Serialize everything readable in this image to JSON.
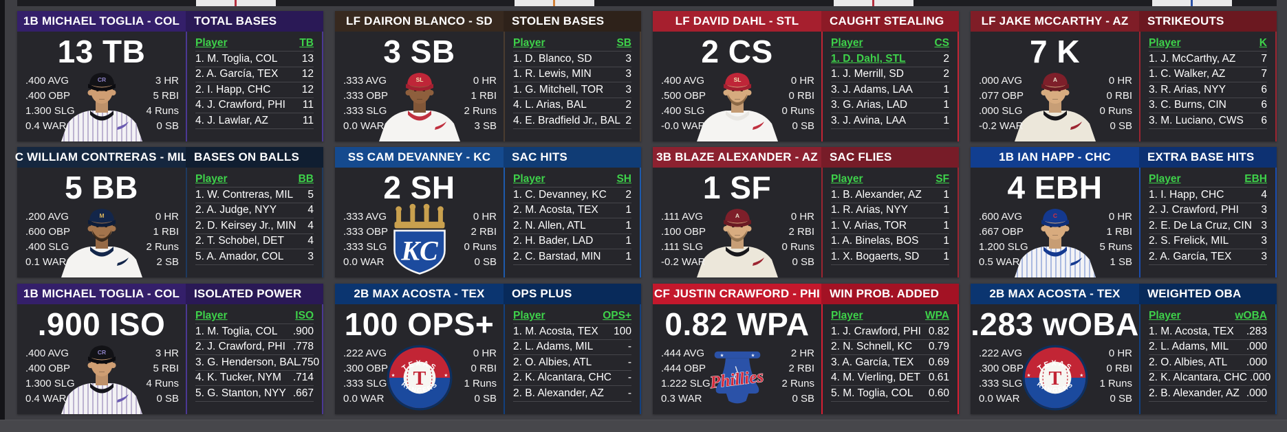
{
  "theme": {
    "background": "#3e3e43",
    "panel_background": "#26262b",
    "accent_green": "#3ed24a",
    "row_line": "#46464b",
    "text": "#ffffff"
  },
  "panels": [
    {
      "player": "1B MICHAEL TOGLIA - COL",
      "category": "TOTAL BASES",
      "big_stat": "13 TB",
      "lb_player_label": "Player",
      "lb_value_label": "TB",
      "left_stats": [
        ".400 AVG",
        ".400 OBP",
        "1.300 SLG",
        "0.4 WAR"
      ],
      "right_stats": [
        "3 HR",
        "5 RBI",
        "4 Runs",
        "0 SB"
      ],
      "leaders": [
        {
          "name": "1. M. Toglia, COL",
          "value": "13",
          "highlight": false
        },
        {
          "name": "2. A. García, TEX",
          "value": "12",
          "highlight": false
        },
        {
          "name": "2. I. Happ, CHC",
          "value": "12",
          "highlight": false
        },
        {
          "name": "4. J. Crawford, PHI",
          "value": "11",
          "highlight": false
        },
        {
          "name": "4. J. Lawlar, AZ",
          "value": "11",
          "highlight": false
        }
      ],
      "colors": {
        "header_left": "#341f6a",
        "header_right": "#2a1956",
        "divider": "#4b3894"
      },
      "portrait": {
        "kind": "player",
        "skin": "#cf9e73",
        "cap": "#121216",
        "brim": "#0c0c10",
        "cap_logo": "CR",
        "cap_logo_color": "#8f83c8",
        "jersey": "#f3f2f5",
        "stripe": "#a99cc4",
        "collar": "#15151c",
        "swoosh": "#6a5bb0",
        "beard": null
      }
    },
    {
      "player": "LF DAIRON BLANCO - SD",
      "category": "STOLEN BASES",
      "big_stat": "3 SB",
      "lb_player_label": "Player",
      "lb_value_label": "SB",
      "left_stats": [
        ".333 AVG",
        ".333 OBP",
        ".333 SLG",
        "0.0 WAR"
      ],
      "right_stats": [
        "0 HR",
        "1 RBI",
        "2 Runs",
        "3 SB"
      ],
      "leaders": [
        {
          "name": "1. D. Blanco, SD",
          "value": "3",
          "highlight": false
        },
        {
          "name": "1. R. Lewis, MIN",
          "value": "3",
          "highlight": false
        },
        {
          "name": "1. G. Mitchell, TOR",
          "value": "3",
          "highlight": false
        },
        {
          "name": "4. L. Arias, BAL",
          "value": "2",
          "highlight": false
        },
        {
          "name": "4. E. Bradfield Jr., BAL",
          "value": "2",
          "highlight": false
        }
      ],
      "colors": {
        "header_left": "#37291f",
        "header_right": "#2e221a",
        "divider": "#4a3c30"
      },
      "portrait": {
        "kind": "player",
        "skin": "#8e5f3d",
        "cap": "#bf2638",
        "brim": "#a31f30",
        "cap_logo": "SL",
        "cap_logo_color": "#f2e3b4",
        "jersey": "#f5f4f2",
        "stripe": null,
        "collar": "#c0303f",
        "swoosh": "#c0303f",
        "beard": null
      }
    },
    {
      "player": "LF DAVID DAHL - STL",
      "category": "CAUGHT STEALING",
      "big_stat": "2 CS",
      "lb_player_label": "Player",
      "lb_value_label": "CS",
      "left_stats": [
        ".400 AVG",
        ".500 OBP",
        ".400 SLG",
        "-0.0 WAR"
      ],
      "right_stats": [
        "0 HR",
        "0 RBI",
        "0 Runs",
        "0 SB"
      ],
      "leaders": [
        {
          "name": "1. D. Dahl, STL",
          "value": "2",
          "highlight": true
        },
        {
          "name": "1. J. Merrill, SD",
          "value": "2",
          "highlight": false
        },
        {
          "name": "3. J. Adams, LAA",
          "value": "1",
          "highlight": false
        },
        {
          "name": "3. G. Arias, LAD",
          "value": "1",
          "highlight": false
        },
        {
          "name": "3. J. Avina, LAA",
          "value": "1",
          "highlight": false
        }
      ],
      "colors": {
        "header_left": "#a61f2e",
        "header_right": "#8c1a26",
        "divider": "#c22535"
      },
      "portrait": {
        "kind": "player",
        "skin": "#d6aa7e",
        "cap": "#bf2638",
        "brim": "#a31f30",
        "cap_logo": "SL",
        "cap_logo_color": "#f2e3b4",
        "jersey": "#f5f4f2",
        "stripe": null,
        "collar": "#e8e6e2",
        "swoosh": "#c0303f",
        "beard": "#7a5a3a"
      }
    },
    {
      "player": "LF JAKE MCCARTHY - AZ",
      "category": "STRIKEOUTS",
      "big_stat": "7 K",
      "lb_player_label": "Player",
      "lb_value_label": "K",
      "left_stats": [
        ".000 AVG",
        ".077 OBP",
        ".000 SLG",
        "-0.2 WAR"
      ],
      "right_stats": [
        "0 HR",
        "0 RBI",
        "0 Runs",
        "0 SB"
      ],
      "leaders": [
        {
          "name": "1. J. McCarthy, AZ",
          "value": "7",
          "highlight": false
        },
        {
          "name": "1. C. Walker, AZ",
          "value": "7",
          "highlight": false
        },
        {
          "name": "3. R. Arias, NYY",
          "value": "6",
          "highlight": false
        },
        {
          "name": "3. C. Burns, CIN",
          "value": "6",
          "highlight": false
        },
        {
          "name": "3. M. Luciano, CWS",
          "value": "6",
          "highlight": false
        }
      ],
      "colors": {
        "header_left": "#7f1d27",
        "header_right": "#6b1820",
        "divider": "#9c2531"
      },
      "portrait": {
        "kind": "player",
        "skin": "#d8ac80",
        "cap": "#7e1f2a",
        "brim": "#6a1a23",
        "cap_logo": "A",
        "cap_logo_color": "#e6ddc8",
        "jersey": "#ece7da",
        "stripe": null,
        "collar": "#17171b",
        "swoosh": "#9c2531",
        "beard": null
      }
    },
    {
      "player": "C WILLIAM CONTRERAS - MIL",
      "category": "BASES ON BALLS",
      "big_stat": "5 BB",
      "lb_player_label": "Player",
      "lb_value_label": "BB",
      "left_stats": [
        ".200 AVG",
        ".600 OBP",
        ".400 SLG",
        "0.1 WAR"
      ],
      "right_stats": [
        "0 HR",
        "1 RBI",
        "2 Runs",
        "2 SB"
      ],
      "leaders": [
        {
          "name": "1. W. Contreras, MIL",
          "value": "5",
          "highlight": false
        },
        {
          "name": "2. A. Judge, NYY",
          "value": "4",
          "highlight": false
        },
        {
          "name": "2. D. Keirsey Jr., MIN",
          "value": "4",
          "highlight": false
        },
        {
          "name": "2. T. Schobel, DET",
          "value": "4",
          "highlight": false
        },
        {
          "name": "5. A. Amador, COL",
          "value": "3",
          "highlight": false
        }
      ],
      "colors": {
        "header_left": "#15273f",
        "header_right": "#101e31",
        "divider": "#1d3a5f"
      },
      "portrait": {
        "kind": "player",
        "skin": "#a3744c",
        "cap": "#13264a",
        "brim": "#0e1d3a",
        "cap_logo": "M",
        "cap_logo_color": "#d9b45c",
        "jersey": "#f4f3f1",
        "stripe": null,
        "collar": "#13264a",
        "swoosh": "#13264a",
        "beard": "#241a12"
      }
    },
    {
      "player": "SS CAM DEVANNEY - KC",
      "category": "SAC HITS",
      "big_stat": "2 SH",
      "lb_player_label": "Player",
      "lb_value_label": "SH",
      "left_stats": [
        ".333 AVG",
        ".333 OBP",
        ".333 SLG",
        "0.0 WAR"
      ],
      "right_stats": [
        "0 HR",
        "2 RBI",
        "0 Runs",
        "0 SB"
      ],
      "leaders": [
        {
          "name": "1. C. Devanney, KC",
          "value": "2",
          "highlight": false
        },
        {
          "name": "2. M. Acosta, TEX",
          "value": "1",
          "highlight": false
        },
        {
          "name": "2. N. Allen, ATL",
          "value": "1",
          "highlight": false
        },
        {
          "name": "2. H. Bader, LAD",
          "value": "1",
          "highlight": false
        },
        {
          "name": "2. C. Barstad, MIN",
          "value": "1",
          "highlight": false
        }
      ],
      "colors": {
        "header_left": "#154a8e",
        "header_right": "#103c75",
        "divider": "#1d5aad"
      },
      "portrait": {
        "kind": "logo",
        "logo": "kc"
      }
    },
    {
      "player": "3B BLAZE ALEXANDER - AZ",
      "category": "SAC FLIES",
      "big_stat": "1 SF",
      "lb_player_label": "Player",
      "lb_value_label": "SF",
      "left_stats": [
        ".111 AVG",
        ".100 OBP",
        ".111 SLG",
        "-0.2 WAR"
      ],
      "right_stats": [
        "0 HR",
        "2 RBI",
        "0 Runs",
        "0 SB"
      ],
      "leaders": [
        {
          "name": "1. B. Alexander, AZ",
          "value": "1",
          "highlight": false
        },
        {
          "name": "1. R. Arias, NYY",
          "value": "1",
          "highlight": false
        },
        {
          "name": "1. V. Arias, TOR",
          "value": "1",
          "highlight": false
        },
        {
          "name": "1. A. Binelas, BOS",
          "value": "1",
          "highlight": false
        },
        {
          "name": "1. X. Bogaerts, SD",
          "value": "1",
          "highlight": false
        }
      ],
      "colors": {
        "header_left": "#8c2130",
        "header_right": "#771c28",
        "divider": "#9c2531"
      },
      "portrait": {
        "kind": "player",
        "skin": "#d8ac80",
        "cap": "#7e1f2a",
        "brim": "#6a1a23",
        "cap_logo": "A",
        "cap_logo_color": "#e6ddc8",
        "jersey": "#ece7da",
        "stripe": null,
        "collar": "#17171b",
        "swoosh": "#9c2531",
        "beard": "#8a6a48"
      }
    },
    {
      "player": "1B IAN HAPP - CHC",
      "category": "EXTRA BASE HITS",
      "big_stat": "4 EBH",
      "lb_player_label": "Player",
      "lb_value_label": "EBH",
      "left_stats": [
        ".600 AVG",
        ".667 OBP",
        "1.200 SLG",
        "0.5 WAR"
      ],
      "right_stats": [
        "0 HR",
        "1 RBI",
        "5 Runs",
        "1 SB"
      ],
      "leaders": [
        {
          "name": "1. I. Happ, CHC",
          "value": "4",
          "highlight": false
        },
        {
          "name": "2. J. Crawford, PHI",
          "value": "3",
          "highlight": false
        },
        {
          "name": "2. E. De La Cruz, CIN",
          "value": "3",
          "highlight": false
        },
        {
          "name": "2. S. Frelick, MIL",
          "value": "3",
          "highlight": false
        },
        {
          "name": "2. A. García, TEX",
          "value": "3",
          "highlight": false
        }
      ],
      "colors": {
        "header_left": "#113e90",
        "header_right": "#0d3172",
        "divider": "#1a4db0"
      },
      "portrait": {
        "kind": "player",
        "skin": "#d8ab7e",
        "cap": "#14398f",
        "brim": "#0f2f78",
        "cap_logo": "C",
        "cap_logo_color": "#d8303f",
        "jersey": "#f3f3f6",
        "stripe": "#93a7d8",
        "collar": "#14398f",
        "swoosh": "#14398f",
        "beard": null
      }
    },
    {
      "player": "1B MICHAEL TOGLIA - COL",
      "category": "ISOLATED POWER",
      "big_stat": ".900 ISO",
      "lb_player_label": "Player",
      "lb_value_label": "ISO",
      "left_stats": [
        ".400 AVG",
        ".400 OBP",
        "1.300 SLG",
        "0.4 WAR"
      ],
      "right_stats": [
        "3 HR",
        "5 RBI",
        "4 Runs",
        "0 SB"
      ],
      "leaders": [
        {
          "name": "1. M. Toglia, COL",
          "value": ".900",
          "highlight": false
        },
        {
          "name": "2. J. Crawford, PHI",
          "value": ".778",
          "highlight": false
        },
        {
          "name": "3. G. Henderson, BAL",
          "value": ".750",
          "highlight": false
        },
        {
          "name": "4. K. Tucker, NYM",
          "value": ".714",
          "highlight": false
        },
        {
          "name": "5. G. Stanton, NYY",
          "value": ".667",
          "highlight": false
        }
      ],
      "colors": {
        "header_left": "#341f6a",
        "header_right": "#2a1956",
        "divider": "#4b3894"
      },
      "portrait": {
        "kind": "player",
        "skin": "#cf9e73",
        "cap": "#121216",
        "brim": "#0c0c10",
        "cap_logo": "CR",
        "cap_logo_color": "#8f83c8",
        "jersey": "#f3f2f5",
        "stripe": "#a99cc4",
        "collar": "#15151c",
        "swoosh": "#6a5bb0",
        "beard": null
      }
    },
    {
      "player": "2B MAX ACOSTA - TEX",
      "category": "OPS PLUS",
      "big_stat": "100 OPS+",
      "lb_player_label": "Player",
      "lb_value_label": "OPS+",
      "left_stats": [
        ".222 AVG",
        ".300 OBP",
        ".333 SLG",
        "0.0 WAR"
      ],
      "right_stats": [
        "0 HR",
        "0 RBI",
        "1 Runs",
        "0 SB"
      ],
      "leaders": [
        {
          "name": "1. M. Acosta, TEX",
          "value": "100",
          "highlight": false
        },
        {
          "name": "2. L. Adams, MIL",
          "value": "-",
          "highlight": false
        },
        {
          "name": "2. O. Albies, ATL",
          "value": "-",
          "highlight": false
        },
        {
          "name": "2. K. Alcantara, CHC",
          "value": "-",
          "highlight": false
        },
        {
          "name": "2. B. Alexander, AZ",
          "value": "-",
          "highlight": false
        }
      ],
      "colors": {
        "header_left": "#0b3570",
        "header_right": "#082a5a",
        "divider": "#12407f"
      },
      "portrait": {
        "kind": "logo",
        "logo": "tex"
      }
    },
    {
      "player": "CF JUSTIN CRAWFORD - PHI",
      "category": "WIN PROB. ADDED",
      "big_stat": "0.82 WPA",
      "lb_player_label": "Player",
      "lb_value_label": "WPA",
      "left_stats": [
        ".444 AVG",
        ".444 OBP",
        "1.222 SLG",
        "0.3 WAR"
      ],
      "right_stats": [
        "2 HR",
        "2 RBI",
        "2 Runs",
        "0 SB"
      ],
      "leaders": [
        {
          "name": "1. J. Crawford, PHI",
          "value": "0.82",
          "highlight": false
        },
        {
          "name": "2. N. Schnell, KC",
          "value": "0.79",
          "highlight": false
        },
        {
          "name": "3. A. García, TEX",
          "value": "0.69",
          "highlight": false
        },
        {
          "name": "4. M. Vierling, DET",
          "value": "0.61",
          "highlight": false
        },
        {
          "name": "5. M. Toglia, COL",
          "value": "0.60",
          "highlight": false
        }
      ],
      "colors": {
        "header_left": "#c4182c",
        "header_right": "#a31224",
        "divider": "#d71f33"
      },
      "portrait": {
        "kind": "logo",
        "logo": "phi"
      }
    },
    {
      "player": "2B MAX ACOSTA - TEX",
      "category": "WEIGHTED OBA",
      "big_stat": ".283 wOBA",
      "lb_player_label": "Player",
      "lb_value_label": "wOBA",
      "left_stats": [
        ".222 AVG",
        ".300 OBP",
        ".333 SLG",
        "0.0 WAR"
      ],
      "right_stats": [
        "0 HR",
        "0 RBI",
        "1 Runs",
        "0 SB"
      ],
      "leaders": [
        {
          "name": "1. M. Acosta, TEX",
          "value": ".283",
          "highlight": false
        },
        {
          "name": "2. L. Adams, MIL",
          "value": ".000",
          "highlight": false
        },
        {
          "name": "2. O. Albies, ATL",
          "value": ".000",
          "highlight": false
        },
        {
          "name": "2. K. Alcantara, CHC",
          "value": ".000",
          "highlight": false
        },
        {
          "name": "2. B. Alexander, AZ",
          "value": ".000",
          "highlight": false
        }
      ],
      "colors": {
        "header_left": "#0b3570",
        "header_right": "#082a5a",
        "divider": "#12407f"
      },
      "portrait": {
        "kind": "logo",
        "logo": "tex"
      }
    }
  ]
}
